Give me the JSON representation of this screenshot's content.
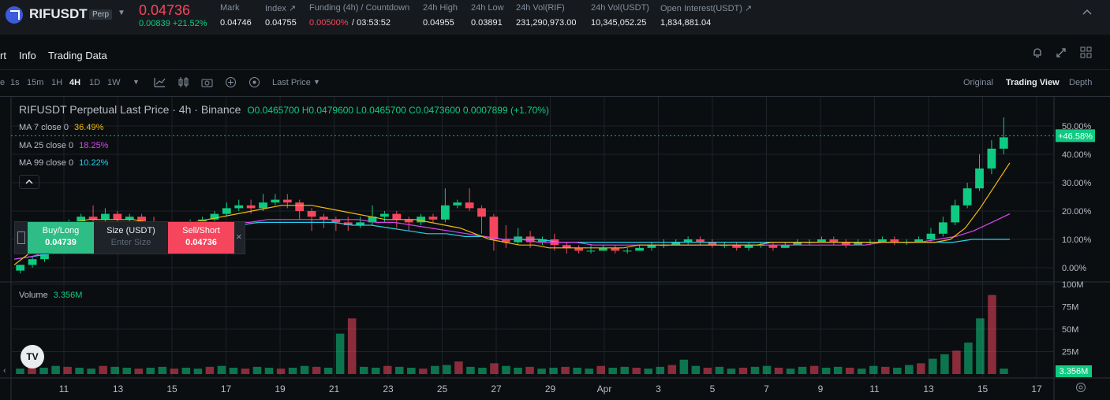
{
  "header": {
    "symbol": "RIFUSDT",
    "contract_badge": "Perp",
    "last_price": "0.04736",
    "change": "0.00839 +21.52%",
    "stats": [
      {
        "label": "Mark",
        "value": "0.04746"
      },
      {
        "label": "Index ↗",
        "value": "0.04755"
      },
      {
        "label": "Funding (4h) / Countdown",
        "value_funding": "0.00500%",
        "value_countdown": "/ 03:53:52"
      },
      {
        "label": "24h High",
        "value": "0.04955"
      },
      {
        "label": "24h Low",
        "value": "0.03891"
      },
      {
        "label": "24h Vol(RIF)",
        "value": "231,290,973.00"
      },
      {
        "label": "24h Vol(USDT)",
        "value": "10,345,052.25"
      },
      {
        "label": "Open Interest(USDT) ↗",
        "value": "1,834,881.04"
      }
    ],
    "colors": {
      "up": "#0ecb81",
      "down": "#f6465d",
      "accent": "#f0b90b"
    }
  },
  "tabs": {
    "chart": "rt",
    "info": "Info",
    "trading_data": "Trading Data"
  },
  "toolbar": {
    "timeframes": [
      "e",
      "1s",
      "15m",
      "1H",
      "4H",
      "1D",
      "1W"
    ],
    "active_timeframe": "4H",
    "price_type": "Last Price",
    "views": [
      "Original",
      "Trading View",
      "Depth"
    ],
    "active_view": "Trading View"
  },
  "legend": {
    "title": "RIFUSDT Perpetual Last Price · 4h · Binance",
    "ohlc": "O0.0465700 H0.0479600 L0.0465700 C0.0473600 0.0007899 (+1.70%)",
    "ma": [
      {
        "label": "MA 7 close 0",
        "value": "36.49%",
        "color": "#f0b90b"
      },
      {
        "label": "MA 25 close 0",
        "value": "18.25%",
        "color": "#d946ef"
      },
      {
        "label": "MA 99 close 0",
        "value": "10.22%",
        "color": "#22d3ee"
      }
    ],
    "collapse_icon": "chevron-up-icon"
  },
  "order_panel": {
    "buy_label": "Buy/Long",
    "buy_price": "0.04739",
    "size_label": "Size (USDT)",
    "size_placeholder": "Enter Size",
    "sell_label": "Sell/Short",
    "sell_price": "0.04736",
    "close_icon": "×"
  },
  "volume": {
    "label": "Volume",
    "value": "3.356M"
  },
  "chart_data": {
    "type": "candlestick",
    "y_axis_ticks": [
      "50.00%",
      "40.00%",
      "30.00%",
      "20.00%",
      "10.00%",
      "0.00%"
    ],
    "current_badge": "+46.58%",
    "volume_axis_ticks": [
      "100M",
      "75M",
      "50M",
      "25M"
    ],
    "volume_badge": "3.356M",
    "x_axis_ticks": [
      "11",
      "13",
      "15",
      "17",
      "19",
      "21",
      "23",
      "25",
      "27",
      "29",
      "Apr",
      "3",
      "5",
      "7",
      "9",
      "11",
      "13",
      "15",
      "17"
    ],
    "candles_pct": [
      [
        -1,
        1,
        -2,
        1
      ],
      [
        1,
        3,
        0,
        4
      ],
      [
        3,
        7,
        2,
        8
      ],
      [
        7,
        12,
        6,
        13
      ],
      [
        12,
        16,
        11,
        17
      ],
      [
        16,
        18,
        14,
        19
      ],
      [
        18,
        17,
        15,
        22
      ],
      [
        17,
        19,
        16,
        21
      ],
      [
        19,
        17,
        15,
        20
      ],
      [
        17,
        18,
        16,
        19
      ],
      [
        18,
        16,
        14,
        19
      ],
      [
        16,
        14,
        13,
        18
      ],
      [
        14,
        13,
        11,
        15
      ],
      [
        13,
        15,
        12,
        16
      ],
      [
        15,
        16,
        14,
        17
      ],
      [
        16,
        17,
        15,
        18
      ],
      [
        17,
        19,
        16,
        20
      ],
      [
        19,
        21,
        18,
        23
      ],
      [
        21,
        22,
        20,
        24
      ],
      [
        22,
        21,
        19,
        24
      ],
      [
        21,
        23,
        20,
        26
      ],
      [
        23,
        24,
        22,
        26
      ],
      [
        24,
        23,
        21,
        26
      ],
      [
        23,
        20,
        17,
        24
      ],
      [
        20,
        18,
        13,
        21
      ],
      [
        18,
        17,
        14,
        19
      ],
      [
        17,
        16,
        13,
        18
      ],
      [
        16,
        15,
        13,
        18
      ],
      [
        15,
        16,
        14,
        18
      ],
      [
        16,
        18,
        15,
        22
      ],
      [
        18,
        19,
        16,
        20
      ],
      [
        19,
        17,
        14,
        20
      ],
      [
        17,
        16,
        13,
        18
      ],
      [
        16,
        18,
        15,
        19
      ],
      [
        18,
        17,
        16,
        19
      ],
      [
        17,
        22,
        16,
        28
      ],
      [
        22,
        23,
        21,
        24
      ],
      [
        23,
        21,
        20,
        28
      ],
      [
        21,
        18,
        12,
        22
      ],
      [
        18,
        10,
        6,
        19
      ],
      [
        10,
        9,
        7,
        15
      ],
      [
        9,
        11,
        8,
        14
      ],
      [
        11,
        9,
        7,
        13
      ],
      [
        9,
        10,
        8,
        11
      ],
      [
        10,
        8,
        6,
        12
      ],
      [
        8,
        7,
        5,
        9
      ],
      [
        7,
        6,
        5,
        8
      ],
      [
        6,
        6,
        5,
        8
      ],
      [
        6,
        7,
        6,
        8
      ],
      [
        7,
        6,
        5,
        8
      ],
      [
        6,
        6,
        5,
        7
      ],
      [
        6,
        7,
        6,
        8
      ],
      [
        7,
        8,
        6,
        9
      ],
      [
        8,
        8,
        7,
        10
      ],
      [
        8,
        9,
        8,
        10
      ],
      [
        9,
        10,
        8,
        11
      ],
      [
        10,
        9,
        8,
        11
      ],
      [
        9,
        8,
        7,
        10
      ],
      [
        8,
        8,
        7,
        9
      ],
      [
        8,
        7,
        6,
        9
      ],
      [
        7,
        8,
        6,
        9
      ],
      [
        8,
        8,
        7,
        9
      ],
      [
        8,
        7,
        6,
        9
      ],
      [
        7,
        8,
        7,
        9
      ],
      [
        8,
        9,
        8,
        10
      ],
      [
        9,
        9,
        8,
        10
      ],
      [
        9,
        10,
        9,
        11
      ],
      [
        10,
        9,
        8,
        11
      ],
      [
        9,
        8,
        7,
        10
      ],
      [
        8,
        9,
        8,
        10
      ],
      [
        9,
        9,
        8,
        10
      ],
      [
        9,
        10,
        9,
        11
      ],
      [
        10,
        9,
        8,
        11
      ],
      [
        9,
        9,
        8,
        10
      ],
      [
        9,
        10,
        9,
        11
      ],
      [
        10,
        12,
        9,
        14
      ],
      [
        12,
        16,
        11,
        18
      ],
      [
        16,
        22,
        15,
        24
      ],
      [
        22,
        28,
        21,
        30
      ],
      [
        28,
        35,
        27,
        40
      ],
      [
        35,
        42,
        33,
        45
      ],
      [
        42,
        46,
        40,
        53
      ]
    ],
    "ma7_pct": [
      1,
      5,
      10,
      14,
      16,
      17,
      17,
      17,
      17,
      16,
      15,
      15,
      16,
      17,
      18,
      19,
      20,
      21,
      22,
      22,
      22,
      21,
      20,
      19,
      18,
      17,
      17,
      17,
      16,
      15,
      14,
      12,
      10,
      9,
      8,
      8,
      7,
      7,
      7,
      7,
      7,
      7,
      8,
      8,
      8,
      8,
      8,
      8,
      8,
      8,
      8,
      9,
      9,
      9,
      9,
      9,
      9,
      9,
      9,
      9,
      9,
      9,
      9,
      10,
      14,
      21,
      29,
      37
    ],
    "ma25_pct": [
      3,
      4,
      6,
      8,
      10,
      12,
      13,
      14,
      15,
      15,
      16,
      16,
      16,
      16,
      17,
      17,
      17,
      17,
      17,
      17,
      16,
      16,
      15,
      14,
      13,
      12,
      11,
      10,
      10,
      9,
      9,
      9,
      8,
      8,
      8,
      8,
      8,
      8,
      8,
      8,
      8,
      8,
      8,
      8,
      8,
      8,
      8,
      8,
      9,
      9,
      9,
      10,
      11,
      13,
      16,
      19
    ],
    "ma99_pct": [
      3,
      4,
      5,
      6,
      7,
      8,
      9,
      10,
      11,
      12,
      13,
      14,
      15,
      16,
      16,
      16,
      16,
      16,
      15,
      15,
      14,
      13,
      12,
      12,
      11,
      11,
      10,
      10,
      10,
      9,
      9,
      9,
      9,
      9,
      9,
      9,
      9,
      9,
      9,
      9,
      9,
      9,
      9,
      9,
      9,
      9,
      9,
      9,
      9,
      9,
      9,
      10,
      10,
      10
    ],
    "volumes_m": [
      6,
      8,
      7,
      9,
      8,
      7,
      6,
      9,
      8,
      7,
      6,
      7,
      8,
      6,
      7,
      6,
      8,
      9,
      7,
      6,
      8,
      7,
      6,
      7,
      9,
      8,
      7,
      45,
      62,
      8,
      7,
      9,
      8,
      7,
      6,
      9,
      10,
      14,
      8,
      7,
      12,
      9,
      7,
      8,
      6,
      7,
      8,
      7,
      6,
      9,
      7,
      8,
      7,
      6,
      8,
      10,
      16,
      9,
      7,
      8,
      6,
      7,
      8,
      9,
      7,
      6,
      8,
      9,
      7,
      8,
      7,
      6,
      9,
      8,
      7,
      10,
      12,
      17,
      22,
      26,
      35,
      62,
      88,
      6
    ]
  }
}
